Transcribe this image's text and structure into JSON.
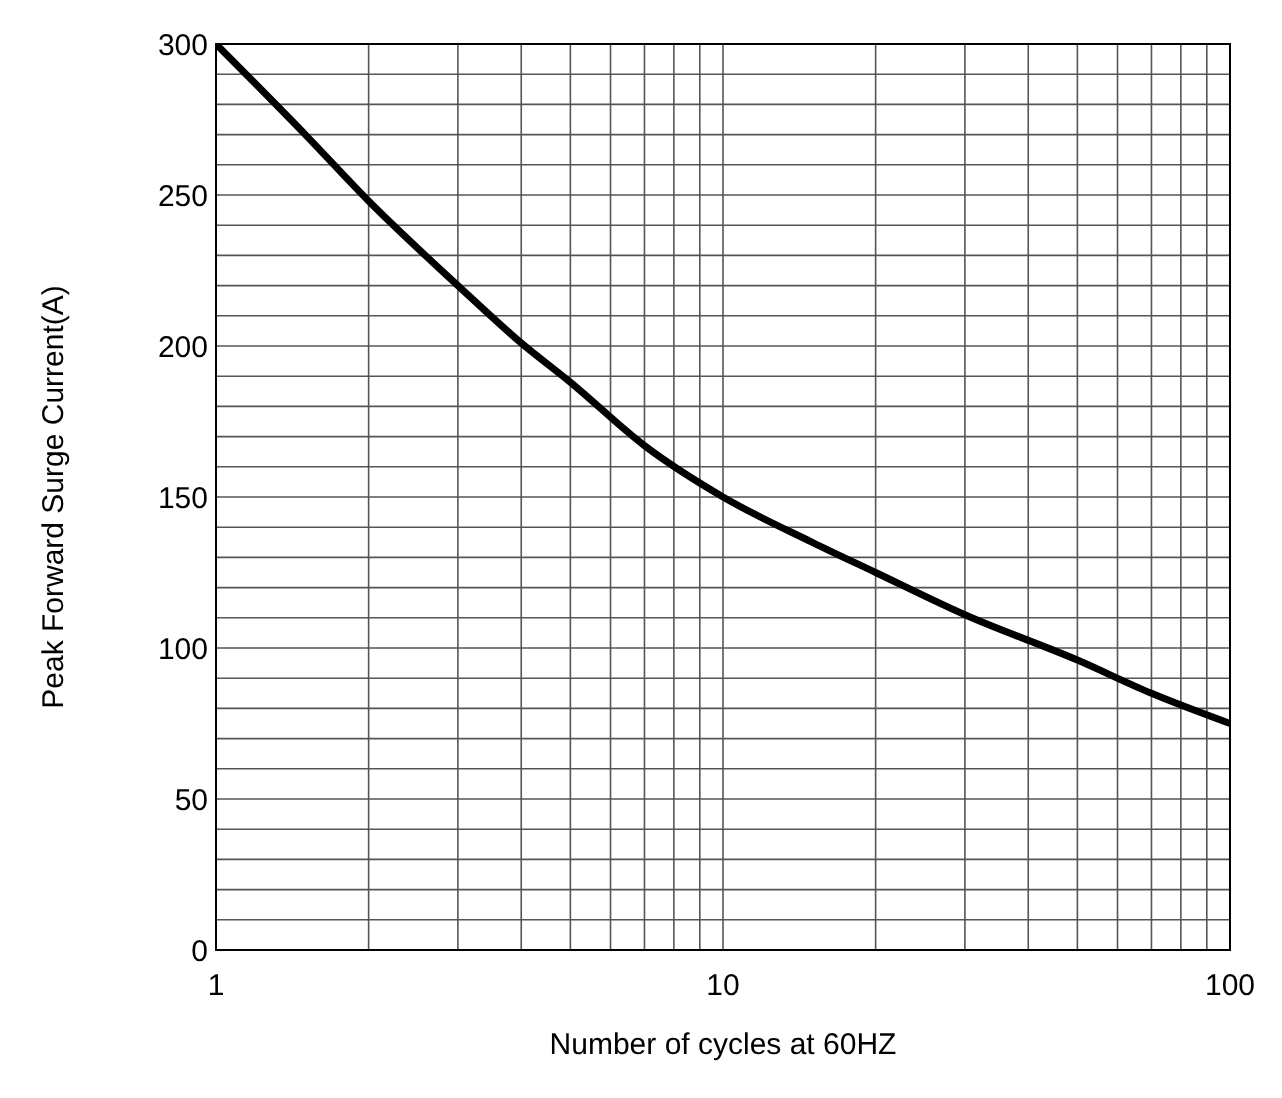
{
  "chart_data": {
    "type": "line",
    "xlabel": "Number  of  cycles at 60HZ",
    "ylabel": "Peak  Forward  Surge  Current(A)",
    "x": [
      1,
      1.5,
      2,
      3,
      4,
      5,
      7,
      10,
      15,
      20,
      30,
      50,
      70,
      100
    ],
    "series": [
      {
        "color": "#000000",
        "values": [
          300,
          270,
          248,
          220,
          201,
          188,
          167,
          150,
          135,
          125,
          111,
          96,
          85,
          75
        ]
      }
    ],
    "log": "x",
    "xlim": [
      1,
      100
    ],
    "xticks": [
      1,
      {
        "value": 2,
        "label": null
      },
      {
        "value": 3,
        "label": null
      },
      {
        "value": 4,
        "label": null
      },
      {
        "value": 5,
        "label": null
      },
      {
        "value": 6,
        "label": null
      },
      {
        "value": 7,
        "label": null
      },
      {
        "value": 8,
        "label": null
      },
      {
        "value": 9,
        "label": null
      },
      10,
      {
        "value": 20,
        "label": null
      },
      {
        "value": 30,
        "label": null
      },
      {
        "value": 40,
        "label": null
      },
      {
        "value": 50,
        "label": null
      },
      {
        "value": 60,
        "label": null
      },
      {
        "value": 70,
        "label": null
      },
      {
        "value": 80,
        "label": null
      },
      {
        "value": 90,
        "label": null
      },
      100
    ],
    "ylim": [
      0,
      300
    ],
    "yticks": [
      0,
      {
        "value": 10,
        "label": null
      },
      {
        "value": 20,
        "label": null
      },
      {
        "value": 30,
        "label": null
      },
      {
        "value": 40,
        "label": null
      },
      50,
      {
        "value": 60,
        "label": null
      },
      {
        "value": 70,
        "label": null
      },
      {
        "value": 80,
        "label": null
      },
      {
        "value": 90,
        "label": null
      },
      100,
      {
        "value": 110,
        "label": null
      },
      {
        "value": 120,
        "label": null
      },
      {
        "value": 130,
        "label": null
      },
      {
        "value": 140,
        "label": null
      },
      150,
      {
        "value": 160,
        "label": null
      },
      {
        "value": 170,
        "label": null
      },
      {
        "value": 180,
        "label": null
      },
      {
        "value": 190,
        "label": null
      },
      200,
      {
        "value": 210,
        "label": null
      },
      {
        "value": 220,
        "label": null
      },
      {
        "value": 230,
        "label": null
      },
      {
        "value": 240,
        "label": null
      },
      250,
      {
        "value": 260,
        "label": null
      },
      {
        "value": 270,
        "label": null
      },
      {
        "value": 280,
        "label": null
      },
      {
        "value": 290,
        "label": null
      },
      300
    ],
    "grid": true,
    "marker": "none",
    "line_style": "solid"
  }
}
